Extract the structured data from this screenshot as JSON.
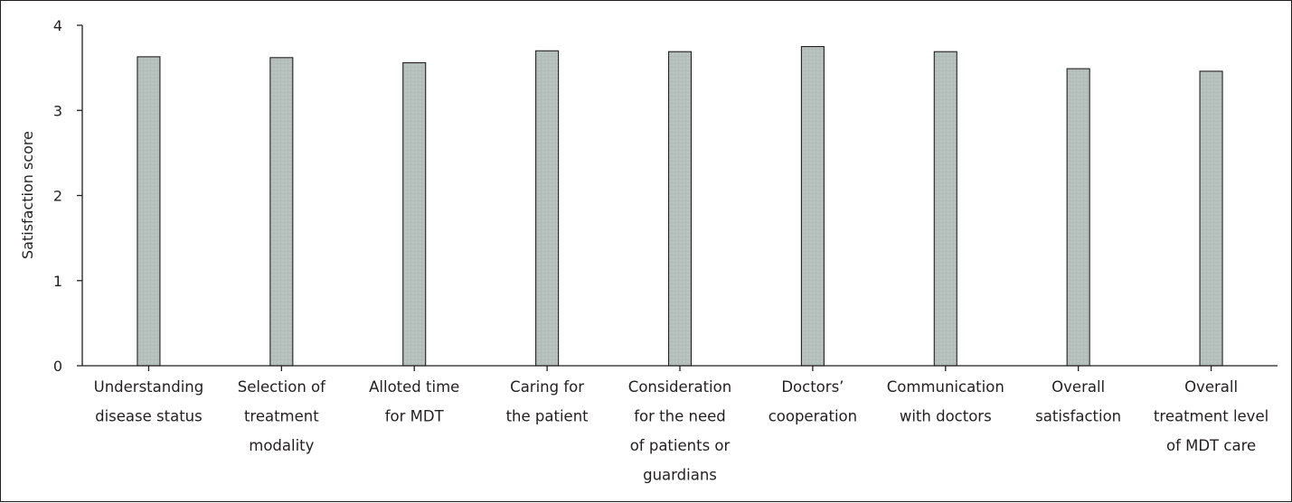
{
  "chart_data": {
    "type": "bar",
    "title": "",
    "xlabel": "",
    "ylabel": "Satisfaction score",
    "ylim": [
      0,
      4
    ],
    "yticks": [
      0,
      1,
      2,
      3,
      4
    ],
    "grid": false,
    "bar_color": "#b5bfbb",
    "bar_edge_color": "#231f20",
    "categories": [
      [
        "Understanding",
        "disease status"
      ],
      [
        "Selection of",
        "treatment",
        "modality"
      ],
      [
        "Alloted time",
        "for MDT"
      ],
      [
        "Caring for",
        "the patient"
      ],
      [
        "Consideration",
        "for the need",
        "of patients or",
        "guardians"
      ],
      [
        "Doctors’",
        "cooperation"
      ],
      [
        "Communication",
        "with doctors"
      ],
      [
        "Overall",
        "satisfaction"
      ],
      [
        "Overall",
        "treatment level",
        "of MDT care"
      ]
    ],
    "values": [
      3.63,
      3.62,
      3.56,
      3.7,
      3.69,
      3.75,
      3.69,
      3.49,
      3.46
    ]
  }
}
